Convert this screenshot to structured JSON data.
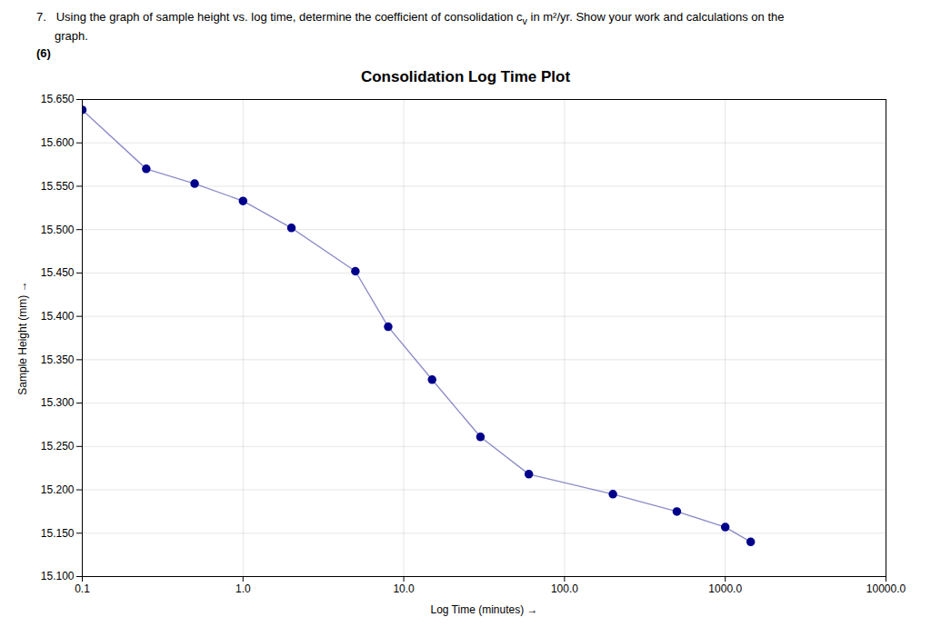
{
  "chart_data": {
    "type": "line",
    "title": "Consolidation Log Time Plot",
    "annotations": [
      "7.   Using the graph of sample height vs. log time, determine the coefficient of consolidation c",
      "v",
      " in m²/yr. Show your work and calculations on the",
      "graph.",
      "(6)"
    ],
    "x_label": "Log Time (minutes)",
    "y_label": "Sample Height (mm)",
    "x": [
      0.1,
      0.25,
      0.5,
      1.0,
      2.0,
      5.0,
      8.0,
      15.0,
      30.0,
      60.0,
      200.0,
      500.0,
      1000.0,
      1440.0
    ],
    "values": [
      15.638,
      15.57,
      15.553,
      15.533,
      15.502,
      15.452,
      15.388,
      15.327,
      15.261,
      15.218,
      15.195,
      15.175,
      15.157,
      15.14
    ],
    "color": "#00008B",
    "marker": "circle",
    "line_style": "solid",
    "log": "x",
    "xlim": [
      0.1,
      10000.0
    ],
    "ylim": [
      15.1,
      15.65
    ],
    "xticks": [
      0.1,
      {
        "value": 1.0,
        "label": "1.0"
      },
      {
        "value": 10.0,
        "label": "10.0"
      },
      {
        "value": 100.0,
        "label": "100.0"
      },
      {
        "value": 1000.0,
        "label": "1000.0"
      },
      {
        "value": 10000.0,
        "label": "10000.0"
      }
    ],
    "yticks": [
      {
        "value": 15.1,
        "label": "15.100"
      },
      {
        "value": 15.15,
        "label": "15.150"
      },
      {
        "value": 15.2,
        "label": "15.200"
      },
      {
        "value": 15.25,
        "label": "15.250"
      },
      {
        "value": 15.3,
        "label": "15.300"
      },
      {
        "value": 15.35,
        "label": "15.350"
      },
      {
        "value": 15.4,
        "label": "15.400"
      },
      {
        "value": 15.45,
        "label": "15.450"
      },
      {
        "value": 15.5,
        "label": "15.500"
      },
      {
        "value": 15.55,
        "label": "15.550"
      },
      {
        "value": 15.6,
        "label": "15.600"
      },
      {
        "value": 15.65,
        "label": "15.650"
      }
    ],
    "grid": true
  }
}
